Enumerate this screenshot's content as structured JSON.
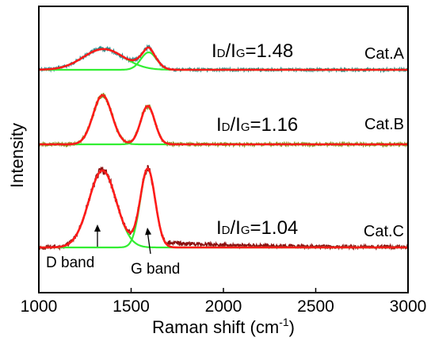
{
  "chart_data": {
    "type": "line",
    "title": "",
    "xlabel": "Raman shift (cm",
    "xlabel_sup": "-1",
    "xlabel_close": ")",
    "ylabel": "Intensity",
    "xlim": [
      1000,
      3000
    ],
    "x_ticks": [
      1000,
      1500,
      2000,
      2500,
      3000
    ],
    "grid": false,
    "colors": {
      "cat_a": "#2a8c8c",
      "cat_b": "#8c8a18",
      "cat_c": "#8c1010",
      "fit": "#ff1a1a",
      "component": "#33ee33"
    },
    "series": [
      {
        "name": "Cat.A",
        "ratio_pre": "I",
        "ratio_sub1": "D",
        "ratio_mid": "/I",
        "ratio_sub2": "G",
        "ratio_value": "=1.48",
        "baseline": 0.0,
        "d_band": {
          "center": 1350,
          "width": 260,
          "height": 0.45
        },
        "g_band": {
          "center": 1595,
          "width": 100,
          "height": 0.38
        },
        "extra_peak": {
          "center": 1595,
          "width": 40,
          "height": 0.22
        }
      },
      {
        "name": "Cat.B",
        "ratio_pre": "I",
        "ratio_sub1": "D",
        "ratio_mid": "/I",
        "ratio_sub2": "G",
        "ratio_value": "=1.16",
        "baseline": 0.0,
        "d_band": {
          "center": 1345,
          "width": 120,
          "height": 1.0
        },
        "g_band": {
          "center": 1590,
          "width": 90,
          "height": 0.78
        }
      },
      {
        "name": "Cat.C",
        "ratio_pre": "I",
        "ratio_sub1": "D",
        "ratio_mid": "/I",
        "ratio_sub2": "G",
        "ratio_value": "=1.04",
        "baseline": 0.0,
        "d_band": {
          "center": 1345,
          "width": 175,
          "height": 1.0
        },
        "g_band": {
          "center": 1590,
          "width": 95,
          "height": 1.02
        }
      }
    ],
    "annotations": [
      {
        "text": "D band",
        "points_to": 1330
      },
      {
        "text": "G band",
        "points_to": 1590
      }
    ]
  }
}
